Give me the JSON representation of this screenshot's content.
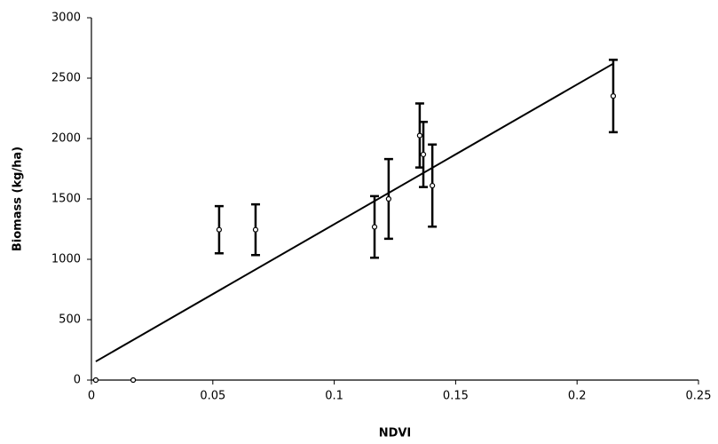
{
  "chart_data": {
    "type": "scatter",
    "x_label": "NDVI",
    "y_label": "Biomass (kg/ha)",
    "x": [
      0.0018,
      0.0172,
      0.0526,
      0.0676,
      0.1166,
      0.1224,
      0.1352,
      0.1367,
      0.1404,
      0.2149
    ],
    "y": [
      0,
      0,
      1245,
      1245,
      1268,
      1500,
      2025,
      1868,
      1610,
      2352
    ],
    "errors": [
      null,
      null,
      195,
      210,
      255,
      330,
      265,
      270,
      340,
      300
    ],
    "trendline": {
      "x": [
        0.0018,
        0.2149
      ],
      "y": [
        154,
        2620
      ]
    },
    "color": "#000000",
    "xlim": [
      0,
      0.25
    ],
    "xticks": [
      0,
      0.05,
      0.1,
      0.15,
      0.2,
      0.25
    ],
    "ylim": [
      0,
      3000
    ],
    "yticks": [
      0,
      500,
      1000,
      1500,
      2000,
      2500,
      3000
    ],
    "grid": false
  }
}
